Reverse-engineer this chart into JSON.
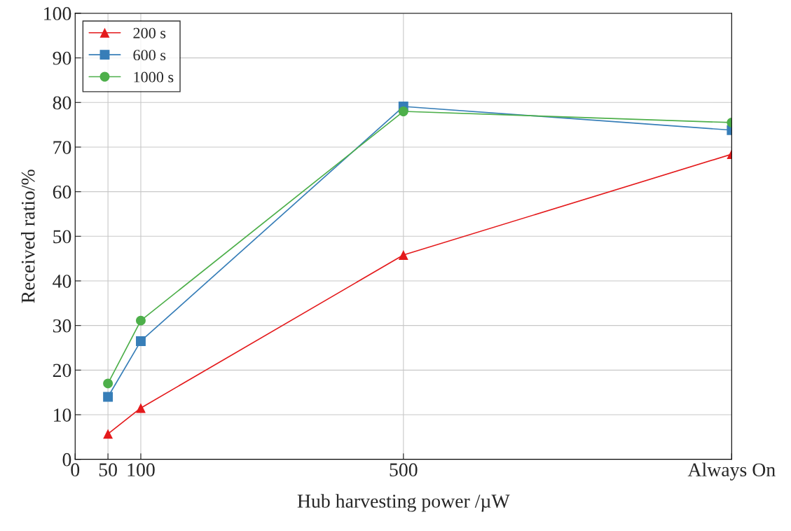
{
  "chart_data": {
    "type": "line",
    "xlabel": "Hub harvesting power /µW",
    "ylabel": "Received ratio/%",
    "x": [
      50,
      100,
      500,
      1000
    ],
    "xlim": [
      0,
      1000
    ],
    "xticks": [
      0,
      50,
      100,
      500,
      {
        "value": 1000,
        "label": "Always On"
      }
    ],
    "ylim": [
      0,
      100
    ],
    "yticks": [
      0,
      10,
      20,
      30,
      40,
      50,
      60,
      70,
      80,
      90,
      100
    ],
    "grid": true,
    "legend": "top left",
    "line_style": "solid",
    "series": [
      {
        "name": "200 s",
        "color": "#e41a1c",
        "marker": "triangle",
        "values": [
          5.7,
          11.5,
          45.8,
          68.4
        ]
      },
      {
        "name": "600 s",
        "color": "#377eb8",
        "marker": "square",
        "values": [
          14.0,
          26.5,
          79.1,
          73.8
        ]
      },
      {
        "name": "1000 s",
        "color": "#4daf4a",
        "marker": "circle",
        "values": [
          17.0,
          31.1,
          78.0,
          75.5
        ]
      }
    ]
  }
}
